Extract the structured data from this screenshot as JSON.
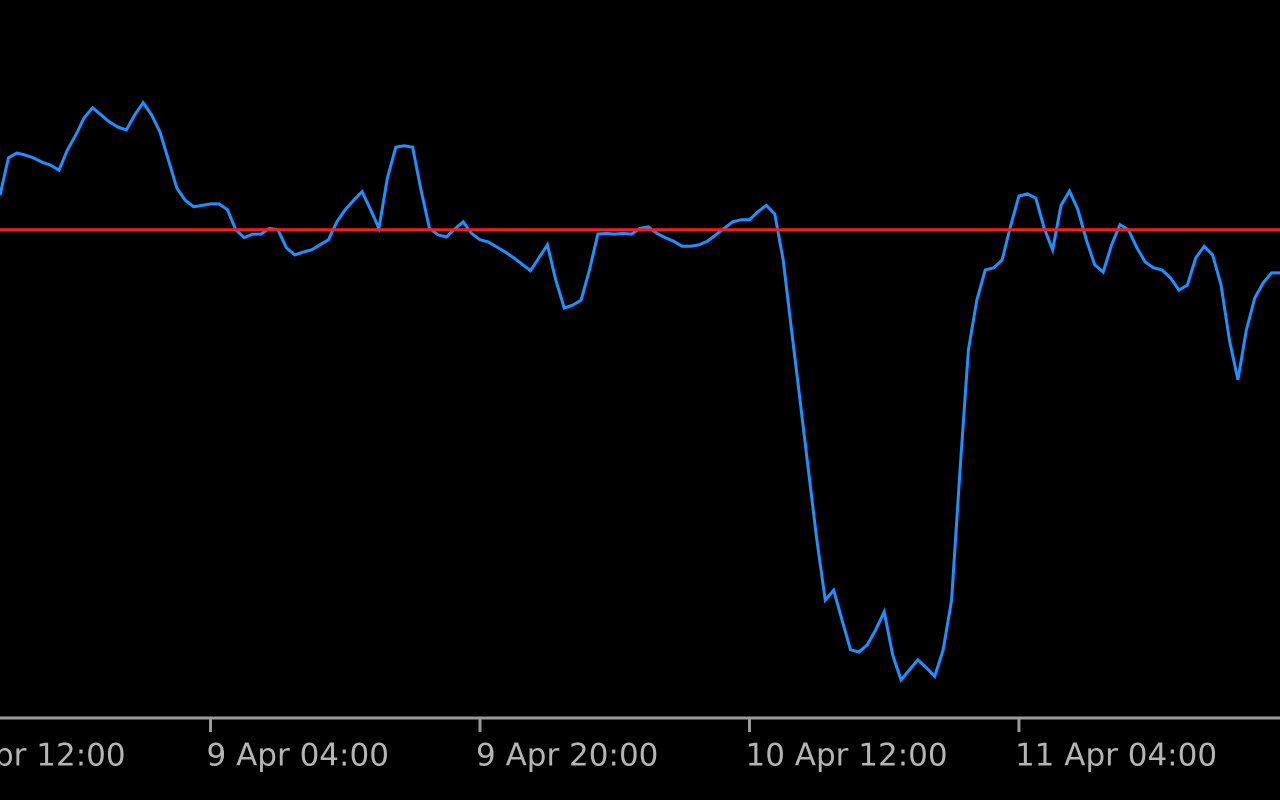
{
  "chart_data": {
    "type": "line",
    "x_edge_label": "pr 12:00",
    "xlim": [
      0,
      152
    ],
    "xticks": [
      {
        "value": 25,
        "label": "9 Apr 04:00"
      },
      {
        "value": 57,
        "label": "9 Apr 20:00"
      },
      {
        "value": 89,
        "label": "10 Apr 12:00"
      },
      {
        "value": 121,
        "label": "11 Apr 04:00"
      }
    ],
    "ylim": [
      0,
      100
    ],
    "reference_line": {
      "value": 68.0,
      "color": "#ff1a1a"
    },
    "series": [
      {
        "color": "#1e90ff",
        "values": [
          72.8,
          78.0,
          78.7,
          78.4,
          78.0,
          77.4,
          77.0,
          76.3,
          79.1,
          81.2,
          83.6,
          85.0,
          84.0,
          83.0,
          82.3,
          81.9,
          84.0,
          85.7,
          84.0,
          81.6,
          77.7,
          73.8,
          72.1,
          71.2,
          71.4,
          71.6,
          71.6,
          70.8,
          68.0,
          66.9,
          67.4,
          67.4,
          68.2,
          68.0,
          65.5,
          64.5,
          64.9,
          65.2,
          65.9,
          66.6,
          69.1,
          70.8,
          72.1,
          73.3,
          70.8,
          68.2,
          75.2,
          79.5,
          79.7,
          79.5,
          73.5,
          68.2,
          67.3,
          67.0,
          68.1,
          69.1,
          67.5,
          66.6,
          66.3,
          65.6,
          64.9,
          64.1,
          63.2,
          62.3,
          64.1,
          65.9,
          61.0,
          57.1,
          57.5,
          58.2,
          62.4,
          67.4,
          67.5,
          67.4,
          67.5,
          67.4,
          68.2,
          68.4,
          67.5,
          66.9,
          66.4,
          65.7,
          65.7,
          65.9,
          66.4,
          67.3,
          68.2,
          69.1,
          69.4,
          69.4,
          70.5,
          71.4,
          70.2,
          63.8,
          54.0,
          44.3,
          34.5,
          24.8,
          16.4,
          17.8,
          13.6,
          9.5,
          9.2,
          10.2,
          12.3,
          14.8,
          8.8,
          5.3,
          6.7,
          8.1,
          7.0,
          5.8,
          9.5,
          16.4,
          34.5,
          51.3,
          58.2,
          62.4,
          62.7,
          63.8,
          68.5,
          72.7,
          73.0,
          72.4,
          68.2,
          65.2,
          71.4,
          73.4,
          70.8,
          66.6,
          63.1,
          62.1,
          65.9,
          68.7,
          68.0,
          65.5,
          63.5,
          62.7,
          62.4,
          61.3,
          59.6,
          60.3,
          64.1,
          65.7,
          64.5,
          60.3,
          52.6,
          47.1,
          54.0,
          58.5,
          60.6,
          62.0,
          62.0
        ]
      }
    ]
  }
}
